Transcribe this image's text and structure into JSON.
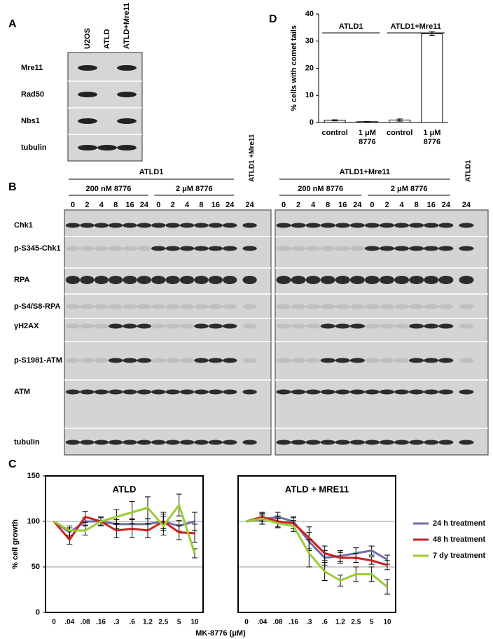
{
  "panel_labels": {
    "a": "A",
    "b": "B",
    "c": "C",
    "d": "D"
  },
  "panel_a": {
    "lanes": [
      "U2OS",
      "ATLD",
      "ATLD+Mre11"
    ],
    "rows": [
      "Mre11",
      "Rad50",
      "Nbs1",
      "tubulin"
    ]
  },
  "panel_b": {
    "rows": [
      "Chk1",
      "p-S345-Chk1",
      "RPA",
      "p-S4/S8-RPA",
      "γH2AX",
      "p-S1981-ATM",
      "ATM",
      "tubulin"
    ],
    "times": [
      "0",
      "2",
      "4",
      "8",
      "16",
      "24"
    ],
    "left": {
      "group": "ATLD1",
      "doses": [
        "200 nM 8776",
        "2 μM 8776"
      ],
      "control": "ATLD1 +Mre11"
    },
    "right": {
      "group": "ATLD1+Mre11",
      "doses": [
        "200 nM 8776",
        "2 μM 8776"
      ],
      "control": "ATLD1"
    }
  },
  "chart_data": [
    {
      "type": "bar",
      "ylabel": "% cells with comet tails",
      "groups": [
        "ATLD1",
        "ATLD1+Mre11"
      ],
      "categories": [
        "control",
        "1 μM 8776",
        "control",
        "1 μM 8776"
      ],
      "values": [
        0.8,
        0.3,
        0.9,
        32.8
      ],
      "errors": [
        0.2,
        0.1,
        0.4,
        0.7
      ],
      "color": "#ffffff",
      "ylim": [
        0,
        40
      ],
      "yticks": [
        0,
        10,
        20,
        30,
        40
      ]
    },
    {
      "type": "line",
      "title": "ATLD",
      "ylabel": "% cell growth",
      "xlabel": "MK-8776 (μM)",
      "categories": [
        "0",
        ".04",
        ".08",
        ".16",
        ".3",
        ".6",
        "1.2",
        "2.5",
        "5",
        "10"
      ],
      "ylim": [
        0,
        150
      ],
      "yticks": [
        0,
        50,
        100,
        150
      ],
      "grid": true,
      "series": [
        {
          "color": "#6f6fa6",
          "values": [
            100,
            88,
            100,
            100,
            97,
            97,
            97,
            100,
            95,
            100
          ],
          "errors": [
            0,
            5,
            4,
            4,
            5,
            6,
            6,
            8,
            6,
            10
          ]
        },
        {
          "color": "#cc2020",
          "values": [
            100,
            80,
            105,
            100,
            90,
            92,
            90,
            100,
            88,
            87
          ],
          "errors": [
            0,
            5,
            6,
            5,
            8,
            10,
            8,
            10,
            8,
            10
          ]
        },
        {
          "color": "#99cc33",
          "values": [
            100,
            90,
            90,
            100,
            105,
            110,
            115,
            95,
            118,
            65
          ],
          "errors": [
            0,
            5,
            5,
            5,
            8,
            12,
            12,
            10,
            12,
            5
          ]
        }
      ]
    },
    {
      "type": "line",
      "title": "ATLD + MRE11",
      "legend": "right",
      "categories": [
        "0",
        ".04",
        ".08",
        ".16",
        ".3",
        ".6",
        "1.2",
        "2.5",
        "5",
        "10"
      ],
      "ylim": [
        0,
        150
      ],
      "yticks": [
        50,
        100
      ],
      "grid": true,
      "series": [
        {
          "name": "24 h treatment",
          "color": "#6f6fa6",
          "values": [
            100,
            102,
            105,
            100,
            78,
            60,
            62,
            65,
            68,
            58
          ],
          "errors": [
            0,
            5,
            5,
            5,
            10,
            8,
            6,
            6,
            5,
            5
          ]
        },
        {
          "name": "48 h treatment",
          "color": "#cc2020",
          "values": [
            100,
            105,
            100,
            98,
            82,
            65,
            60,
            60,
            57,
            52
          ],
          "errors": [
            0,
            5,
            6,
            6,
            12,
            8,
            6,
            5,
            4,
            5
          ]
        },
        {
          "name": "7 dy treatment",
          "color": "#99cc33",
          "values": [
            100,
            103,
            98,
            95,
            65,
            45,
            35,
            42,
            42,
            28
          ],
          "errors": [
            0,
            6,
            5,
            6,
            15,
            10,
            6,
            8,
            8,
            8
          ]
        }
      ]
    }
  ]
}
